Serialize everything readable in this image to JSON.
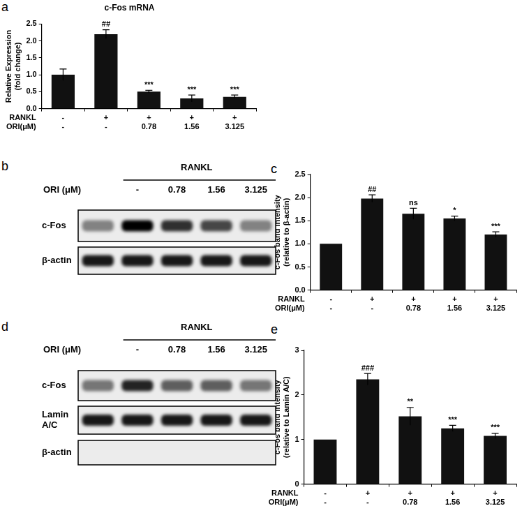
{
  "chart_data": [
    {
      "panel_label": "a",
      "type": "bar",
      "title": "c-Fos mRNA",
      "y_label": [
        "Relative Expression",
        "(fold change)"
      ],
      "row_labels": [
        "RANKL",
        "ORI(μM)"
      ],
      "categories": [
        [
          "-",
          "-"
        ],
        [
          "+",
          "-"
        ],
        [
          "+",
          "0.78"
        ],
        [
          "+",
          "1.56"
        ],
        [
          "+",
          "3.125"
        ]
      ],
      "values": [
        1.0,
        2.2,
        0.5,
        0.3,
        0.35
      ],
      "error": [
        0.17,
        0.13,
        0.04,
        0.1,
        0.05
      ],
      "annotations": [
        null,
        "##",
        "***",
        "***",
        "***"
      ],
      "color": "#111111",
      "ylim": [
        0,
        2.5
      ],
      "yticks": [
        {
          "value": 0,
          "label": "0.0"
        },
        0.5,
        {
          "value": 1,
          "label": "1.0"
        },
        1.5,
        {
          "value": 2,
          "label": "2.0"
        },
        2.5
      ],
      "grid": false
    },
    {
      "panel_label": "c",
      "type": "bar",
      "y_label": [
        "c-Fos band intensity",
        "(relative to β-actin)"
      ],
      "row_labels": [
        "RANKL",
        "ORI(μM)"
      ],
      "categories": [
        [
          "-",
          "-"
        ],
        [
          "+",
          "-"
        ],
        [
          "+",
          "0.78"
        ],
        [
          "+",
          "1.56"
        ],
        [
          "+",
          "3.125"
        ]
      ],
      "values": [
        1.0,
        1.98,
        1.65,
        1.55,
        1.2
      ],
      "error": [
        0,
        0.08,
        0.12,
        0.05,
        0.06
      ],
      "annotations": [
        null,
        "##",
        "ns",
        "*",
        "***"
      ],
      "color": "#111111",
      "ylim": [
        0,
        2.5
      ],
      "yticks": [
        {
          "value": 0,
          "label": "0.0"
        },
        0.5,
        {
          "value": 1,
          "label": "1.0"
        },
        1.5,
        {
          "value": 2,
          "label": "2.0"
        },
        2.5
      ],
      "grid": false
    },
    {
      "panel_label": "e",
      "type": "bar",
      "y_label": [
        "c-Fos band intensity",
        "(relative to Lamin A/C)"
      ],
      "row_labels": [
        "RANKL",
        "ORI(μM)"
      ],
      "categories": [
        [
          "-",
          "-"
        ],
        [
          "+",
          "-"
        ],
        [
          "+",
          "0.78"
        ],
        [
          "+",
          "1.56"
        ],
        [
          "+",
          "3.125"
        ]
      ],
      "values": [
        1.0,
        2.35,
        1.52,
        1.25,
        1.08
      ],
      "error": [
        0,
        0.13,
        0.2,
        0.07,
        0.06
      ],
      "annotations": [
        null,
        "###",
        "**",
        "***",
        "***"
      ],
      "color": "#111111",
      "ylim": [
        0,
        3
      ],
      "yticks": [
        0,
        1,
        2,
        3
      ],
      "grid": false
    }
  ],
  "blots": [
    {
      "panel_label": "b",
      "header": "RANKL",
      "header_lanes": [
        false,
        true,
        true,
        true,
        true
      ],
      "row_label": "ORI (μM)",
      "lanes": [
        null,
        "-",
        "0.78",
        "1.56",
        "3.125"
      ],
      "bands": [
        {
          "label": "c-Fos",
          "intensity": [
            0.45,
            1.0,
            0.8,
            0.7,
            0.45
          ]
        },
        {
          "label": "β-actin",
          "intensity": [
            0.9,
            0.9,
            0.9,
            0.9,
            0.9
          ]
        }
      ]
    },
    {
      "panel_label": "d",
      "header": "RANKL",
      "header_lanes": [
        false,
        true,
        true,
        true,
        true
      ],
      "row_label": "ORI (μM)",
      "lanes": [
        null,
        "-",
        "0.78",
        "1.56",
        "3.125"
      ],
      "bands": [
        {
          "label": "c-Fos",
          "intensity": [
            0.5,
            0.85,
            0.6,
            0.6,
            0.5
          ]
        },
        {
          "label": "Lamin A/C",
          "intensity": [
            0.9,
            0.9,
            0.9,
            0.9,
            0.9
          ]
        },
        {
          "label": "β-actin",
          "intensity": [
            0,
            0,
            0,
            0,
            0
          ]
        }
      ]
    }
  ]
}
